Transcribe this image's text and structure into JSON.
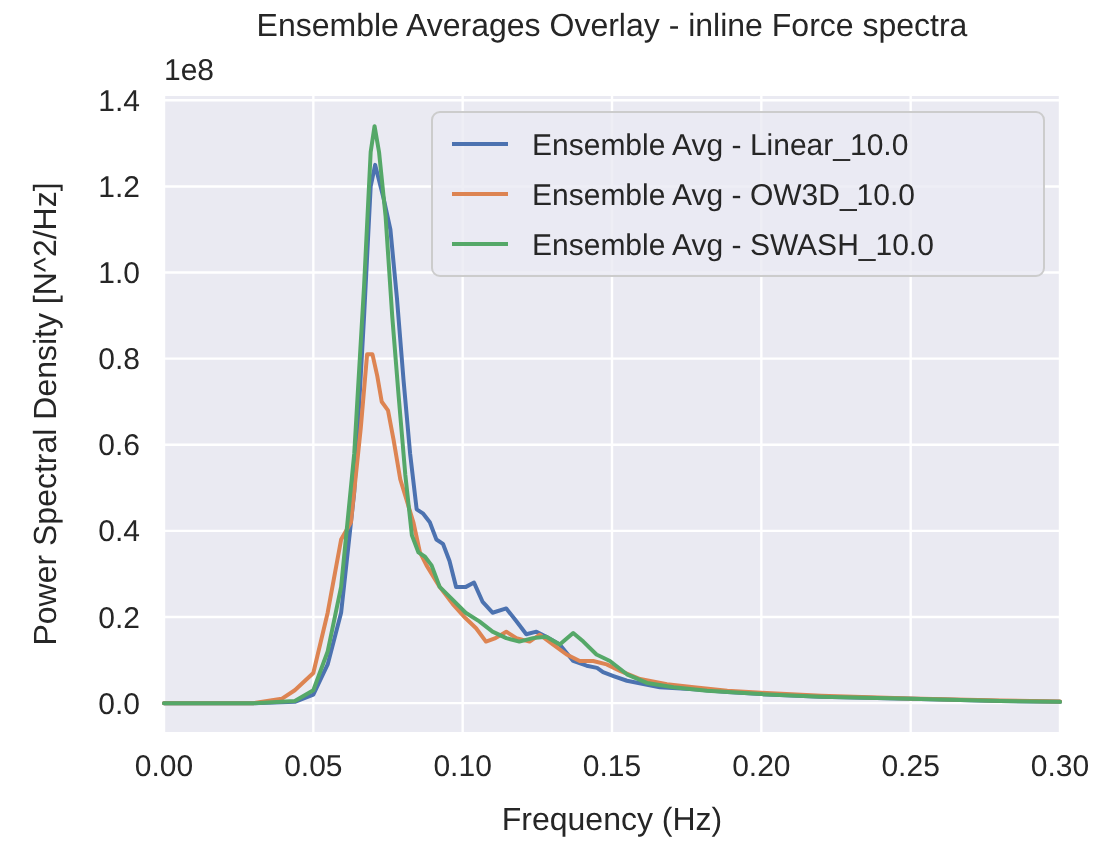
{
  "chart_data": {
    "type": "line",
    "title": "Ensemble Averages Overlay - inline Force spectra",
    "xlabel": "Frequency (Hz)",
    "ylabel": "Power Spectral Density [N^2/Hz]",
    "annotations": [
      "1e8"
    ],
    "xlim": [
      0,
      0.3
    ],
    "xticks": [
      {
        "value": 0,
        "label": "0.00"
      },
      {
        "value": 0.05,
        "label": "0.05"
      },
      {
        "value": 0.1,
        "label": "0.10"
      },
      {
        "value": 0.15,
        "label": "0.15"
      },
      {
        "value": 0.2,
        "label": "0.20"
      },
      {
        "value": 0.25,
        "label": "0.25"
      },
      {
        "value": 0.3,
        "label": "0.30"
      }
    ],
    "ylim": [
      -0.067,
      1.41
    ],
    "yticks": [
      {
        "value": 0,
        "label": "0.0"
      },
      {
        "value": 0.2,
        "label": "0.2"
      },
      {
        "value": 0.4,
        "label": "0.4"
      },
      {
        "value": 0.6,
        "label": "0.6"
      },
      {
        "value": 0.8,
        "label": "0.8"
      },
      {
        "value": 1.0,
        "label": "1.0"
      },
      {
        "value": 1.2,
        "label": "1.2"
      },
      {
        "value": 1.4,
        "label": "1.4"
      }
    ],
    "grid": true,
    "legend": "top right",
    "marker": "none",
    "line_style": "solid",
    "series": [
      {
        "name": "Ensemble Avg - Linear_10.0",
        "color": "#4c72b0",
        "x": [
          0,
          0.03,
          0.0438,
          0.05,
          0.0548,
          0.0593,
          0.0637,
          0.067,
          0.0692,
          0.0707,
          0.0736,
          0.0758,
          0.078,
          0.0802,
          0.0824,
          0.0846,
          0.0868,
          0.089,
          0.0912,
          0.0934,
          0.0956,
          0.0978,
          0.1011,
          0.1038,
          0.1067,
          0.11,
          0.1146,
          0.118,
          0.1213,
          0.1247,
          0.128,
          0.1325,
          0.137,
          0.1415,
          0.145,
          0.147,
          0.1505,
          0.155,
          0.166,
          0.1774,
          0.1886,
          0.2,
          0.22,
          0.25,
          0.28,
          0.3
        ],
        "values": [
          0,
          0,
          0.003,
          0.02,
          0.09,
          0.21,
          0.49,
          0.9,
          1.2,
          1.25,
          1.17,
          1.1,
          0.94,
          0.75,
          0.58,
          0.45,
          0.44,
          0.42,
          0.38,
          0.37,
          0.33,
          0.27,
          0.27,
          0.28,
          0.235,
          0.21,
          0.22,
          0.19,
          0.16,
          0.166,
          0.154,
          0.136,
          0.098,
          0.087,
          0.082,
          0.072,
          0.063,
          0.052,
          0.037,
          0.032,
          0.026,
          0.021,
          0.015,
          0.01,
          0.005,
          0.003
        ]
      },
      {
        "name": "Ensemble Avg - OW3D_10.0",
        "color": "#dd8452",
        "x": [
          0,
          0.03,
          0.0394,
          0.0438,
          0.05,
          0.0548,
          0.0593,
          0.0626,
          0.0659,
          0.068,
          0.0698,
          0.0714,
          0.0729,
          0.075,
          0.0769,
          0.0791,
          0.0813,
          0.0835,
          0.0857,
          0.0879,
          0.0923,
          0.0967,
          0.101,
          0.1045,
          0.1078,
          0.111,
          0.1146,
          0.118,
          0.1224,
          0.1258,
          0.1303,
          0.1348,
          0.1392,
          0.1437,
          0.1482,
          0.1527,
          0.1594,
          0.1684,
          0.1774,
          0.1886,
          0.2,
          0.22,
          0.25,
          0.28,
          0.3
        ],
        "values": [
          0,
          0,
          0.01,
          0.03,
          0.07,
          0.21,
          0.38,
          0.42,
          0.64,
          0.81,
          0.81,
          0.76,
          0.7,
          0.68,
          0.61,
          0.52,
          0.47,
          0.42,
          0.35,
          0.32,
          0.27,
          0.23,
          0.197,
          0.174,
          0.143,
          0.151,
          0.166,
          0.151,
          0.143,
          0.159,
          0.136,
          0.113,
          0.098,
          0.098,
          0.09,
          0.075,
          0.056,
          0.044,
          0.037,
          0.029,
          0.024,
          0.017,
          0.011,
          0.006,
          0.004
        ]
      },
      {
        "name": "Ensemble Avg - SWASH_10.0",
        "color": "#55a868",
        "x": [
          0,
          0.03,
          0.0438,
          0.05,
          0.0548,
          0.0593,
          0.0637,
          0.067,
          0.0692,
          0.0705,
          0.072,
          0.0742,
          0.0764,
          0.0786,
          0.0808,
          0.083,
          0.0852,
          0.0874,
          0.0896,
          0.0923,
          0.0967,
          0.101,
          0.1056,
          0.11,
          0.1146,
          0.119,
          0.1235,
          0.128,
          0.1325,
          0.137,
          0.1404,
          0.1448,
          0.1493,
          0.155,
          0.1617,
          0.1706,
          0.1818,
          0.2,
          0.22,
          0.25,
          0.28,
          0.3
        ],
        "values": [
          0,
          0,
          0.005,
          0.03,
          0.12,
          0.27,
          0.58,
          0.97,
          1.28,
          1.34,
          1.28,
          1.13,
          0.9,
          0.71,
          0.53,
          0.39,
          0.35,
          0.34,
          0.32,
          0.27,
          0.24,
          0.21,
          0.19,
          0.166,
          0.151,
          0.143,
          0.151,
          0.154,
          0.136,
          0.163,
          0.143,
          0.113,
          0.098,
          0.067,
          0.047,
          0.037,
          0.029,
          0.021,
          0.015,
          0.01,
          0.005,
          0.003
        ]
      }
    ]
  }
}
